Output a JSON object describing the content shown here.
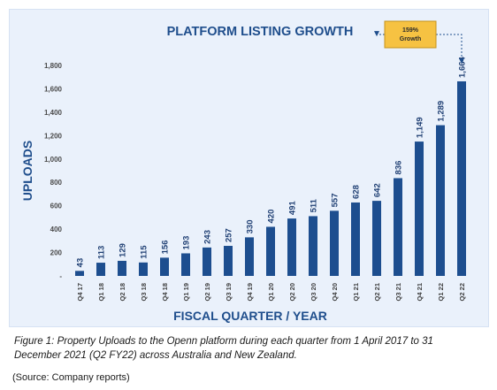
{
  "chart_data": {
    "type": "bar",
    "title": "PLATFORM LISTING GROWTH",
    "xlabel": "FISCAL QUARTER / YEAR",
    "ylabel": "UPLOADS",
    "categories": [
      "Q4 17",
      "Q1 18",
      "Q2 18",
      "Q3 18",
      "Q4 18",
      "Q1 19",
      "Q2 19",
      "Q3 19",
      "Q4 19",
      "Q1 20",
      "Q2 20",
      "Q3 20",
      "Q4 20",
      "Q1 21",
      "Q2 21",
      "Q3 21",
      "Q4 21",
      "Q1 22",
      "Q2 22"
    ],
    "values": [
      43,
      113,
      129,
      115,
      156,
      193,
      243,
      257,
      330,
      420,
      491,
      511,
      557,
      628,
      642,
      836,
      1149,
      1289,
      1664
    ],
    "value_labels": [
      "43",
      "113",
      "129",
      "115",
      "156",
      "193",
      "243",
      "257",
      "330",
      "420",
      "491",
      "511",
      "557",
      "628",
      "642",
      "836",
      "1,149",
      "1,289",
      "1,664"
    ],
    "ylim": [
      0,
      1800
    ],
    "yticks": [
      0,
      200,
      400,
      600,
      800,
      1000,
      1200,
      1400,
      1600,
      1800
    ],
    "ytick_labels": [
      "-",
      "200",
      "400",
      "600",
      "800",
      "1,000",
      "1,200",
      "1,400",
      "1,600",
      "1,800"
    ],
    "grid": false,
    "legend": "none",
    "annotation": {
      "lines": [
        "159%",
        "Growth"
      ],
      "from_category": "Q2 21",
      "to_category": "Q2 22"
    },
    "colors": {
      "bar": "#1d4e8f",
      "title": "#1f4e8c",
      "panel_bg": "#eaf1fb",
      "annotation_fill": "#f6c242",
      "annotation_border": "#c7921a",
      "arrow": "#1f4e8c"
    }
  },
  "caption": "Figure 1: Property Uploads to the Openn platform during each quarter from 1 April 2017 to 31 December 2021 (Q2 FY22) across Australia and New Zealand.",
  "source": "(Source: Company reports)"
}
